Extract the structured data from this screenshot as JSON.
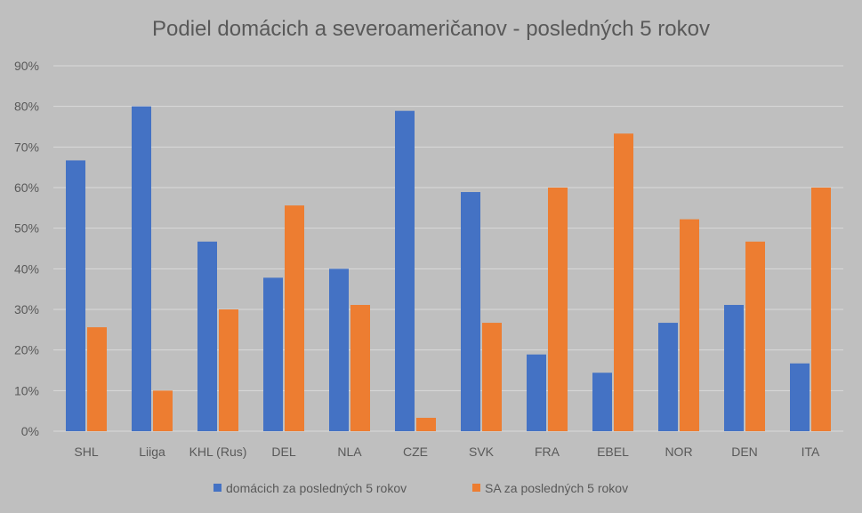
{
  "chart_data": {
    "type": "bar",
    "title": "Podiel domácich a severoameričanov - posledných 5 rokov",
    "categories": [
      "SHL",
      "Liiga",
      "KHL (Rus)",
      "DEL",
      "NLA",
      "CZE",
      "SVK",
      "FRA",
      "EBEL",
      "NOR",
      "DEN",
      "ITA"
    ],
    "series": [
      {
        "name": "domácich za posledných 5 rokov",
        "color": "#4472c4",
        "values": [
          66.7,
          80.0,
          46.7,
          37.8,
          40.0,
          78.9,
          58.9,
          18.9,
          14.4,
          26.7,
          31.1,
          16.7
        ]
      },
      {
        "name": "SA za posledných 5 rokov",
        "color": "#ed7d31",
        "values": [
          25.6,
          10.0,
          30.0,
          55.6,
          31.1,
          3.3,
          26.7,
          60.0,
          73.3,
          52.2,
          46.7,
          60.0
        ]
      }
    ],
    "ylim": [
      0,
      90
    ],
    "yticks": [
      "0%",
      "10%",
      "20%",
      "30%",
      "40%",
      "50%",
      "60%",
      "70%",
      "80%",
      "90%"
    ],
    "xlabel": "",
    "ylabel": "",
    "grid": true,
    "legend_position": "bottom"
  }
}
